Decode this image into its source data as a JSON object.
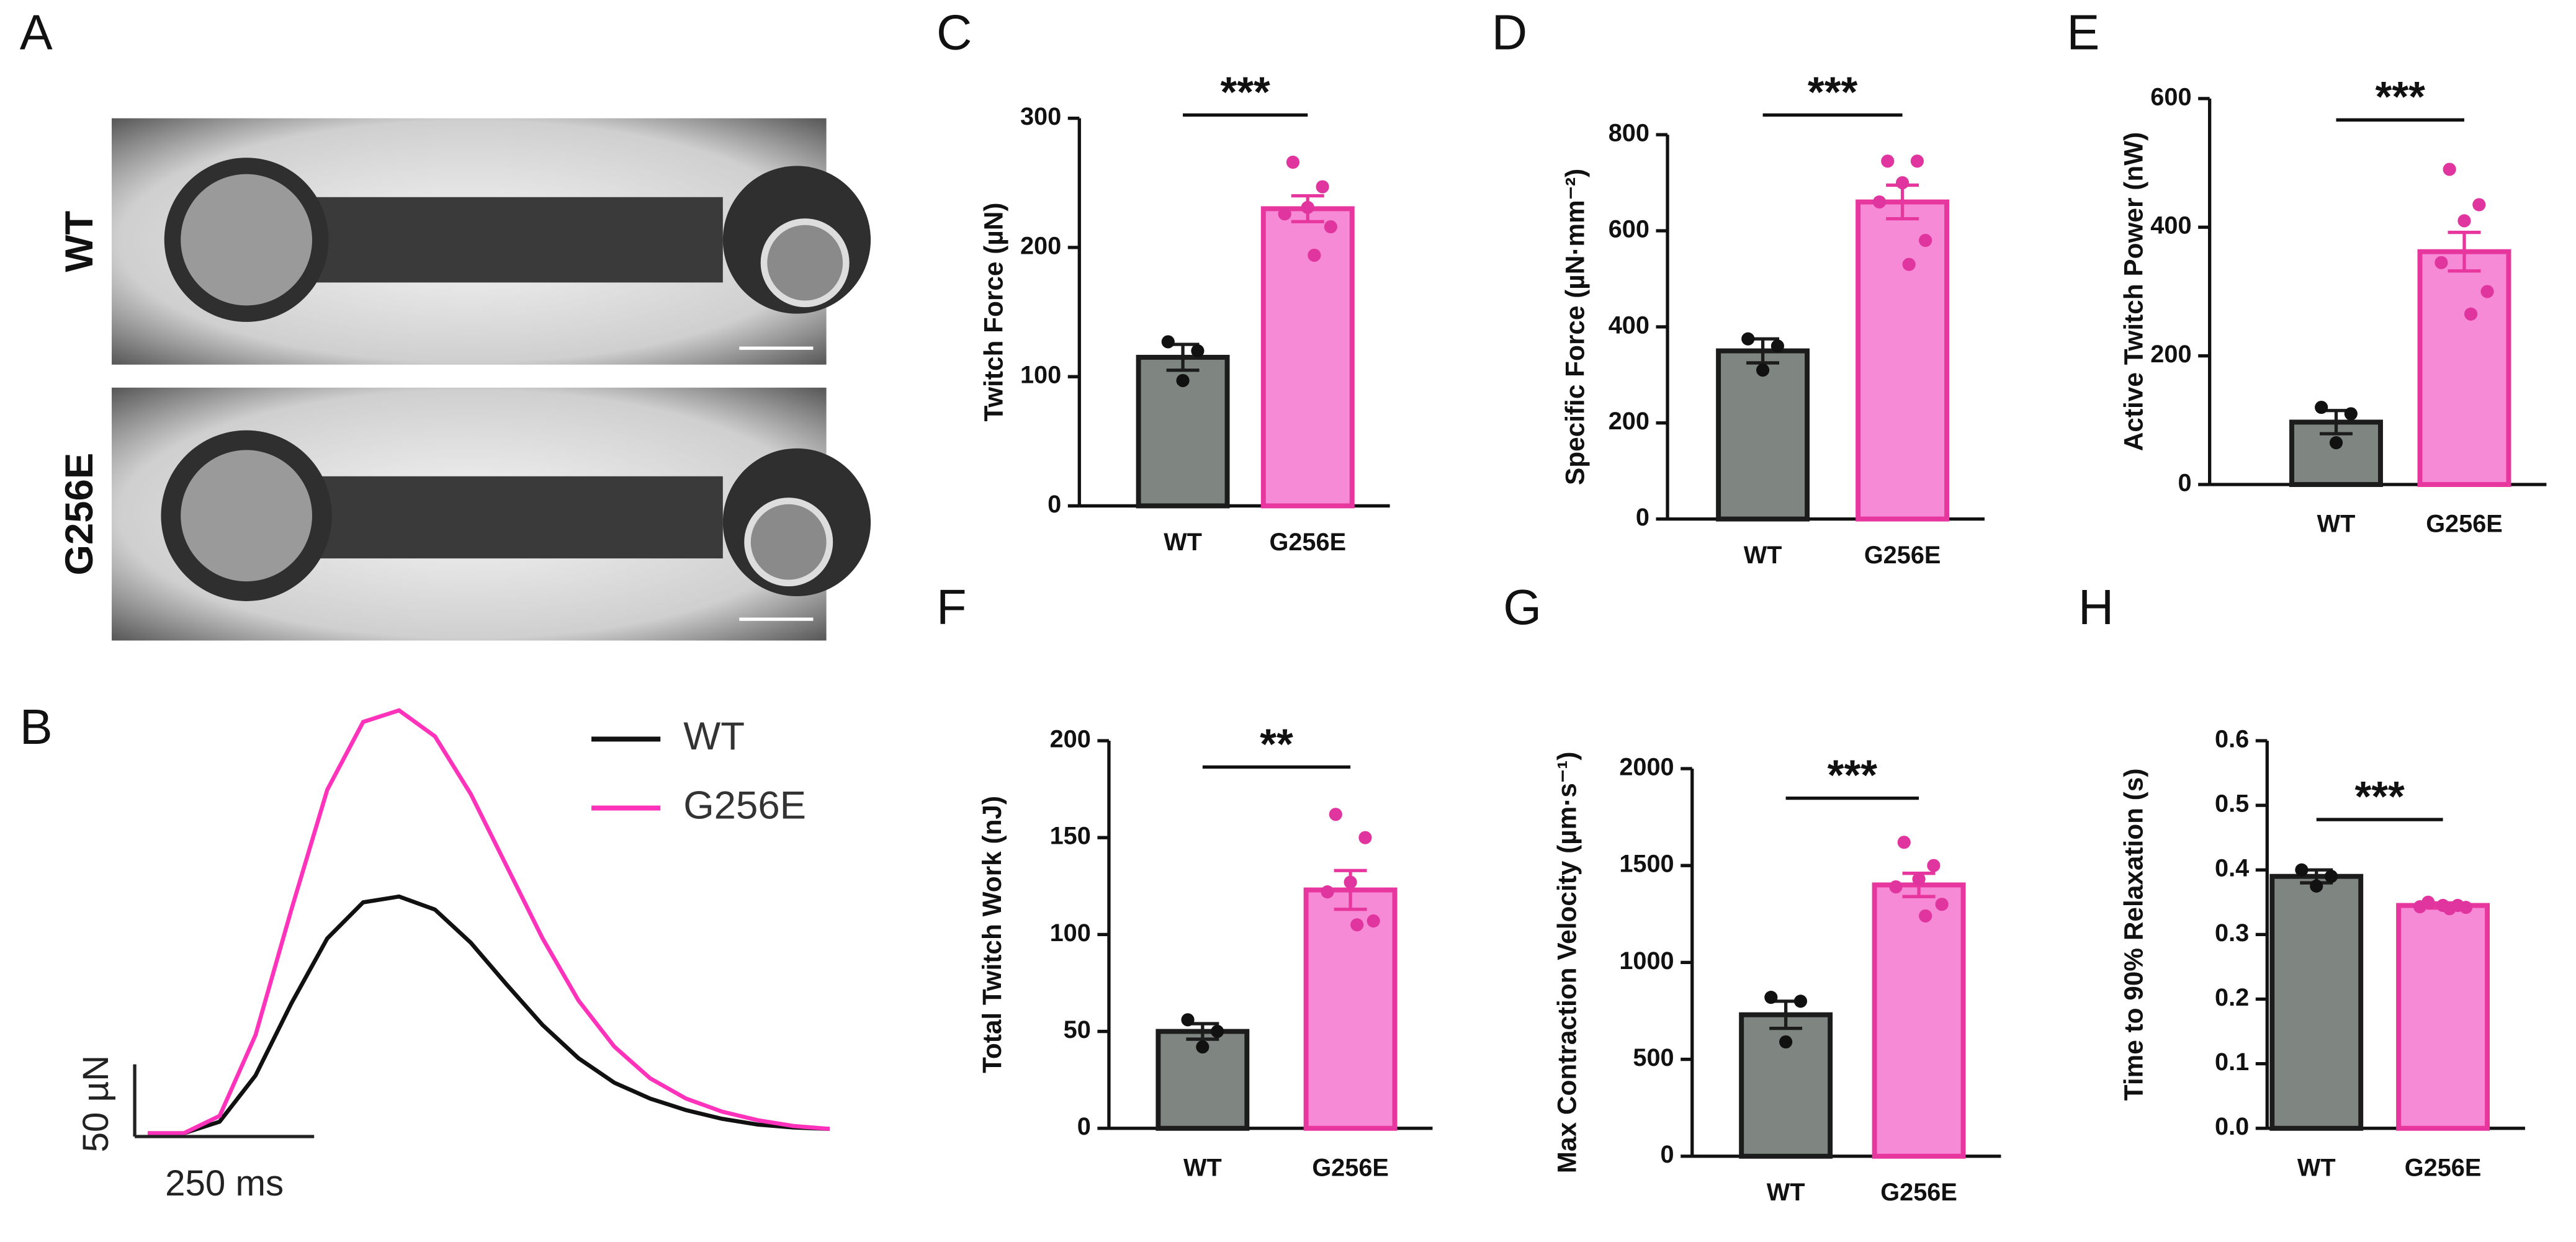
{
  "chart_data": [
    {
      "type": "image",
      "panel": "A",
      "labels": [
        "WT",
        "G256E"
      ]
    },
    {
      "type": "line",
      "panel": "B",
      "x": [
        0,
        50,
        100,
        150,
        200,
        250,
        300,
        350,
        400,
        450,
        500,
        550,
        600,
        650,
        700,
        750,
        800,
        850,
        900,
        950
      ],
      "xlim": [
        0,
        950
      ],
      "ylim": [
        0,
        330
      ],
      "series": [
        {
          "name": "WT",
          "color": "#111111",
          "values": [
            0,
            0,
            8,
            40,
            90,
            135,
            160,
            164,
            155,
            132,
            103,
            75,
            52,
            35,
            24,
            16,
            10,
            6,
            4,
            3
          ]
        },
        {
          "name": "G256E",
          "color": "#ff33bb",
          "values": [
            0,
            0,
            12,
            68,
            155,
            238,
            285,
            293,
            275,
            235,
            185,
            135,
            92,
            60,
            38,
            24,
            15,
            9,
            5,
            3
          ]
        }
      ],
      "scalebar_y": {
        "value": 50,
        "label": "50 µN"
      },
      "scalebar_x": {
        "value": 250,
        "label": "250 ms"
      }
    },
    {
      "type": "bar",
      "panel": "C",
      "ylabel": "Twitch Force (µN)",
      "categories": [
        "WT",
        "G256E"
      ],
      "values": [
        115,
        230
      ],
      "errors": [
        10,
        10
      ],
      "points": [
        [
          127,
          120,
          97
        ],
        [
          266,
          247,
          231,
          226,
          216,
          194
        ]
      ],
      "ylim": [
        0,
        300
      ],
      "yticks": [
        0,
        100,
        200,
        300
      ],
      "significance": "***",
      "colors": [
        "#7f8682",
        "#f78ad6"
      ]
    },
    {
      "type": "bar",
      "panel": "D",
      "ylabel": "Specific Force (µN·mm⁻²)",
      "categories": [
        "WT",
        "G256E"
      ],
      "values": [
        350,
        660
      ],
      "errors": [
        25,
        35
      ],
      "points": [
        [
          375,
          360,
          310
        ],
        [
          745,
          745,
          700,
          660,
          580,
          530
        ]
      ],
      "ylim": [
        0,
        800
      ],
      "yticks": [
        0,
        200,
        400,
        600,
        800
      ],
      "significance": "***",
      "colors": [
        "#7f8682",
        "#f78ad6"
      ]
    },
    {
      "type": "bar",
      "panel": "E",
      "ylabel": "Active Twitch Power (nW)",
      "categories": [
        "WT",
        "G256E"
      ],
      "values": [
        97,
        362
      ],
      "errors": [
        18,
        30
      ],
      "points": [
        [
          120,
          110,
          65
        ],
        [
          490,
          435,
          410,
          345,
          300,
          265
        ]
      ],
      "ylim": [
        0,
        600
      ],
      "yticks": [
        0,
        200,
        400,
        600
      ],
      "significance": "***",
      "colors": [
        "#7f8682",
        "#f78ad6"
      ]
    },
    {
      "type": "bar",
      "panel": "F",
      "ylabel": "Total Twitch Work (nJ)",
      "categories": [
        "WT",
        "G256E"
      ],
      "values": [
        50,
        123
      ],
      "errors": [
        4,
        10
      ],
      "points": [
        [
          56,
          50,
          42
        ],
        [
          162,
          150,
          127,
          122,
          107,
          105
        ]
      ],
      "ylim": [
        0,
        200
      ],
      "yticks": [
        0,
        50,
        100,
        150,
        200
      ],
      "significance": "**",
      "colors": [
        "#7f8682",
        "#f78ad6"
      ]
    },
    {
      "type": "bar",
      "panel": "G",
      "ylabel": "Max Contraction Velocity (µm·s⁻¹)",
      "categories": [
        "WT",
        "G256E"
      ],
      "values": [
        730,
        1400
      ],
      "errors": [
        70,
        60
      ],
      "points": [
        [
          820,
          800,
          590
        ],
        [
          1620,
          1500,
          1430,
          1390,
          1300,
          1240
        ]
      ],
      "ylim": [
        0,
        2000
      ],
      "yticks": [
        0,
        500,
        1000,
        1500,
        2000
      ],
      "significance": "***",
      "colors": [
        "#7f8682",
        "#f78ad6"
      ]
    },
    {
      "type": "bar",
      "panel": "H",
      "ylabel": "Time to 90% Relaxation (s)",
      "categories": [
        "WT",
        "G256E"
      ],
      "values": [
        0.39,
        0.345
      ],
      "errors": [
        0.01,
        0.004
      ],
      "points": [
        [
          0.4,
          0.39,
          0.375
        ],
        [
          0.35,
          0.345,
          0.345,
          0.343,
          0.342,
          0.34
        ]
      ],
      "ylim": [
        0,
        0.6
      ],
      "yticks": [
        {
          "value": 0,
          "label": "0.0"
        },
        0.1,
        0.2,
        0.3,
        0.4,
        0.5,
        0.6
      ],
      "significance": "***",
      "colors": [
        "#7f8682",
        "#f78ad6"
      ]
    }
  ]
}
